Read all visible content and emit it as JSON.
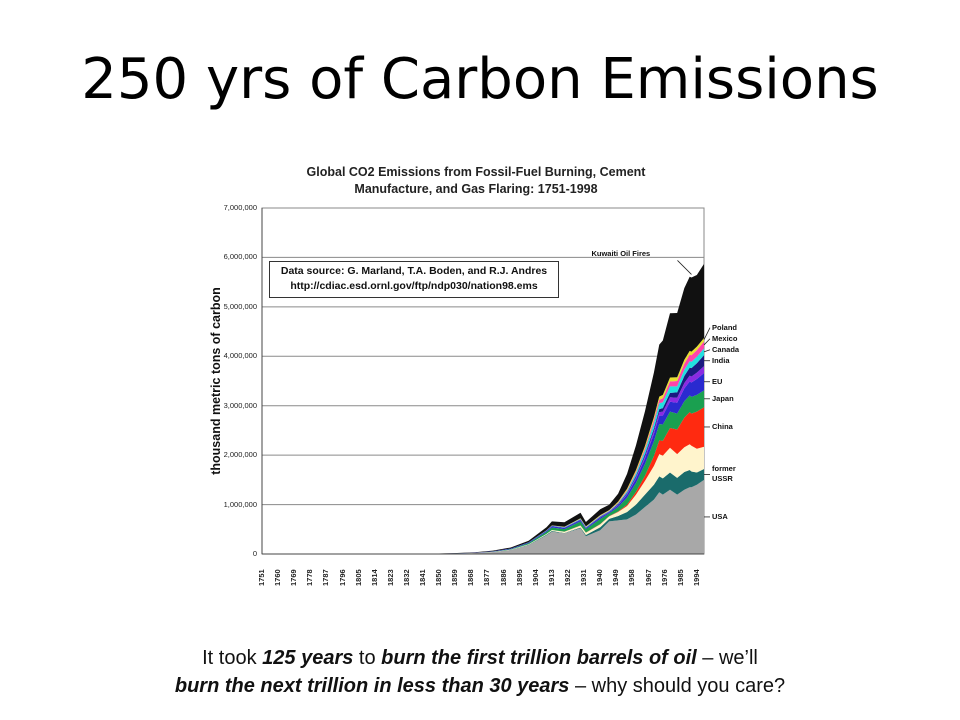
{
  "slide": {
    "title": "250 yrs of Carbon Emissions",
    "caption": {
      "p1": "It took ",
      "b1": "125 years",
      "p2": " to ",
      "b2": "burn the first trillion barrels of oil",
      "p3": " – we’ll",
      "b3": "burn the next trillion in less than 30 years",
      "p4": " – why should you care?"
    }
  },
  "chart_data": {
    "type": "area",
    "title_line1": "Global CO2 Emissions from Fossil-Fuel Burning, Cement",
    "title_line2": "Manufacture, and Gas Flaring: 1751-1998",
    "ylabel": "thousand metric tons of carbon",
    "source_line1": "Data source: G. Marland, T.A. Boden, and R.J. Andres",
    "source_line2": "http://cdiac.esd.ornl.gov/ftp/ndp030/nation98.ems",
    "annotation": "Kuwaiti Oil Fires",
    "xlim": [
      1751,
      1998
    ],
    "ylim": [
      0,
      7000000
    ],
    "grid": true,
    "yticks": [
      {
        "value": 0,
        "label": "0"
      },
      {
        "value": 1000000,
        "label": "1,000,000"
      },
      {
        "value": 2000000,
        "label": "2,000,000"
      },
      {
        "value": 3000000,
        "label": "3,000,000"
      },
      {
        "value": 4000000,
        "label": "4,000,000"
      },
      {
        "value": 5000000,
        "label": "5,000,000"
      },
      {
        "value": 6000000,
        "label": "6,000,000"
      },
      {
        "value": 7000000,
        "label": "7,000,000"
      }
    ],
    "xticks": [
      "1751",
      "1760",
      "1769",
      "1778",
      "1787",
      "1796",
      "1805",
      "1814",
      "1823",
      "1832",
      "1841",
      "1850",
      "1859",
      "1868",
      "1877",
      "1886",
      "1895",
      "1904",
      "1913",
      "1922",
      "1931",
      "1940",
      "1949",
      "1958",
      "1967",
      "1976",
      "1985",
      "1994"
    ],
    "x": [
      1751,
      1800,
      1830,
      1850,
      1860,
      1870,
      1880,
      1890,
      1900,
      1910,
      1913,
      1920,
      1929,
      1932,
      1940,
      1945,
      1950,
      1955,
      1960,
      1965,
      1970,
      1973,
      1975,
      1979,
      1983,
      1987,
      1990,
      1991,
      1994,
      1998
    ],
    "series": [
      {
        "name": "USA",
        "color": "#a8a8a8",
        "values": [
          0,
          150,
          2000,
          5000,
          10000,
          20000,
          40000,
          80000,
          180000,
          380000,
          450000,
          420000,
          520000,
          360000,
          480000,
          660000,
          680000,
          700000,
          800000,
          950000,
          1100000,
          1250000,
          1200000,
          1300000,
          1200000,
          1300000,
          1350000,
          1350000,
          1400000,
          1500000
        ]
      },
      {
        "name": "former USSR",
        "color": "#1a6b6b",
        "values": [
          0,
          0,
          0,
          0,
          300,
          600,
          1500,
          3500,
          8000,
          12000,
          15000,
          5000,
          15000,
          25000,
          60000,
          50000,
          90000,
          150000,
          200000,
          250000,
          300000,
          320000,
          330000,
          350000,
          340000,
          360000,
          350000,
          320000,
          250000,
          220000
        ]
      },
      {
        "name": "",
        "color": "#fff4cc",
        "values": [
          0,
          0,
          0,
          0,
          500,
          1000,
          2000,
          4000,
          8000,
          15000,
          20000,
          25000,
          40000,
          45000,
          60000,
          50000,
          80000,
          120000,
          200000,
          280000,
          380000,
          450000,
          460000,
          500000,
          480000,
          500000,
          520000,
          520000,
          480000,
          450000
        ]
      },
      {
        "name": "China",
        "color": "#ff2a10",
        "values": [
          0,
          0,
          0,
          0,
          0,
          0,
          0,
          0,
          0,
          500,
          1000,
          2000,
          4000,
          5000,
          8000,
          5000,
          10000,
          30000,
          60000,
          100000,
          200000,
          280000,
          300000,
          400000,
          500000,
          600000,
          650000,
          650000,
          750000,
          800000
        ]
      },
      {
        "name": "Japan",
        "color": "#1aa050",
        "values": [
          0,
          0,
          0,
          0,
          1000,
          2000,
          5000,
          12000,
          25000,
          40000,
          50000,
          50000,
          80000,
          70000,
          100000,
          60000,
          90000,
          140000,
          180000,
          240000,
          300000,
          330000,
          330000,
          330000,
          320000,
          330000,
          340000,
          340000,
          340000,
          340000
        ]
      },
      {
        "name": "EU",
        "color": "#2a2ad0",
        "values": [
          0,
          30,
          800,
          1500,
          3000,
          5000,
          8000,
          12000,
          15000,
          20000,
          25000,
          25000,
          30000,
          20000,
          30000,
          20000,
          35000,
          60000,
          80000,
          110000,
          150000,
          170000,
          180000,
          200000,
          220000,
          260000,
          280000,
          290000,
          320000,
          350000
        ]
      },
      {
        "name": "",
        "color": "#8a2be2",
        "values": [
          0,
          0,
          0,
          0,
          0,
          0,
          0,
          0,
          0,
          2000,
          3000,
          4000,
          5000,
          5000,
          8000,
          6000,
          12000,
          20000,
          30000,
          45000,
          60000,
          70000,
          80000,
          90000,
          100000,
          110000,
          120000,
          120000,
          130000,
          140000
        ]
      },
      {
        "name": "India",
        "color": "#1a1a80",
        "values": [
          0,
          0,
          0,
          0,
          0,
          0,
          0,
          0,
          0,
          3000,
          4000,
          5000,
          7000,
          7000,
          10000,
          8000,
          15000,
          20000,
          30000,
          40000,
          50000,
          60000,
          70000,
          90000,
          110000,
          140000,
          160000,
          170000,
          190000,
          220000
        ]
      },
      {
        "name": "Canada",
        "color": "#22e0e0",
        "values": [
          0,
          0,
          0,
          0,
          0,
          0,
          0,
          500,
          1000,
          5000,
          6000,
          8000,
          10000,
          8000,
          10000,
          10000,
          15000,
          30000,
          50000,
          80000,
          110000,
          120000,
          120000,
          130000,
          120000,
          130000,
          130000,
          130000,
          130000,
          140000
        ]
      },
      {
        "name": "Mexico",
        "color": "#ff44aa",
        "values": [
          0,
          0,
          0,
          0,
          0,
          0,
          0,
          0,
          0,
          1000,
          2000,
          3000,
          5000,
          5000,
          8000,
          8000,
          12000,
          20000,
          30000,
          40000,
          60000,
          70000,
          80000,
          100000,
          110000,
          120000,
          130000,
          130000,
          135000,
          140000
        ]
      },
      {
        "name": "Poland",
        "color": "#e8e030",
        "values": [
          0,
          0,
          0,
          0,
          0,
          0,
          0,
          0,
          0,
          3000,
          4000,
          5000,
          8000,
          8000,
          12000,
          10000,
          20000,
          30000,
          40000,
          50000,
          60000,
          65000,
          70000,
          80000,
          75000,
          80000,
          80000,
          75000,
          70000,
          70000
        ]
      },
      {
        "name": "",
        "color": "#111111",
        "values": [
          0,
          100,
          1500,
          3000,
          5000,
          8000,
          12000,
          20000,
          30000,
          60000,
          80000,
          90000,
          110000,
          90000,
          120000,
          110000,
          160000,
          300000,
          500000,
          700000,
          900000,
          1050000,
          1100000,
          1300000,
          1300000,
          1450000,
          1500000,
          1500000,
          1450000,
          1500000
        ]
      }
    ]
  }
}
